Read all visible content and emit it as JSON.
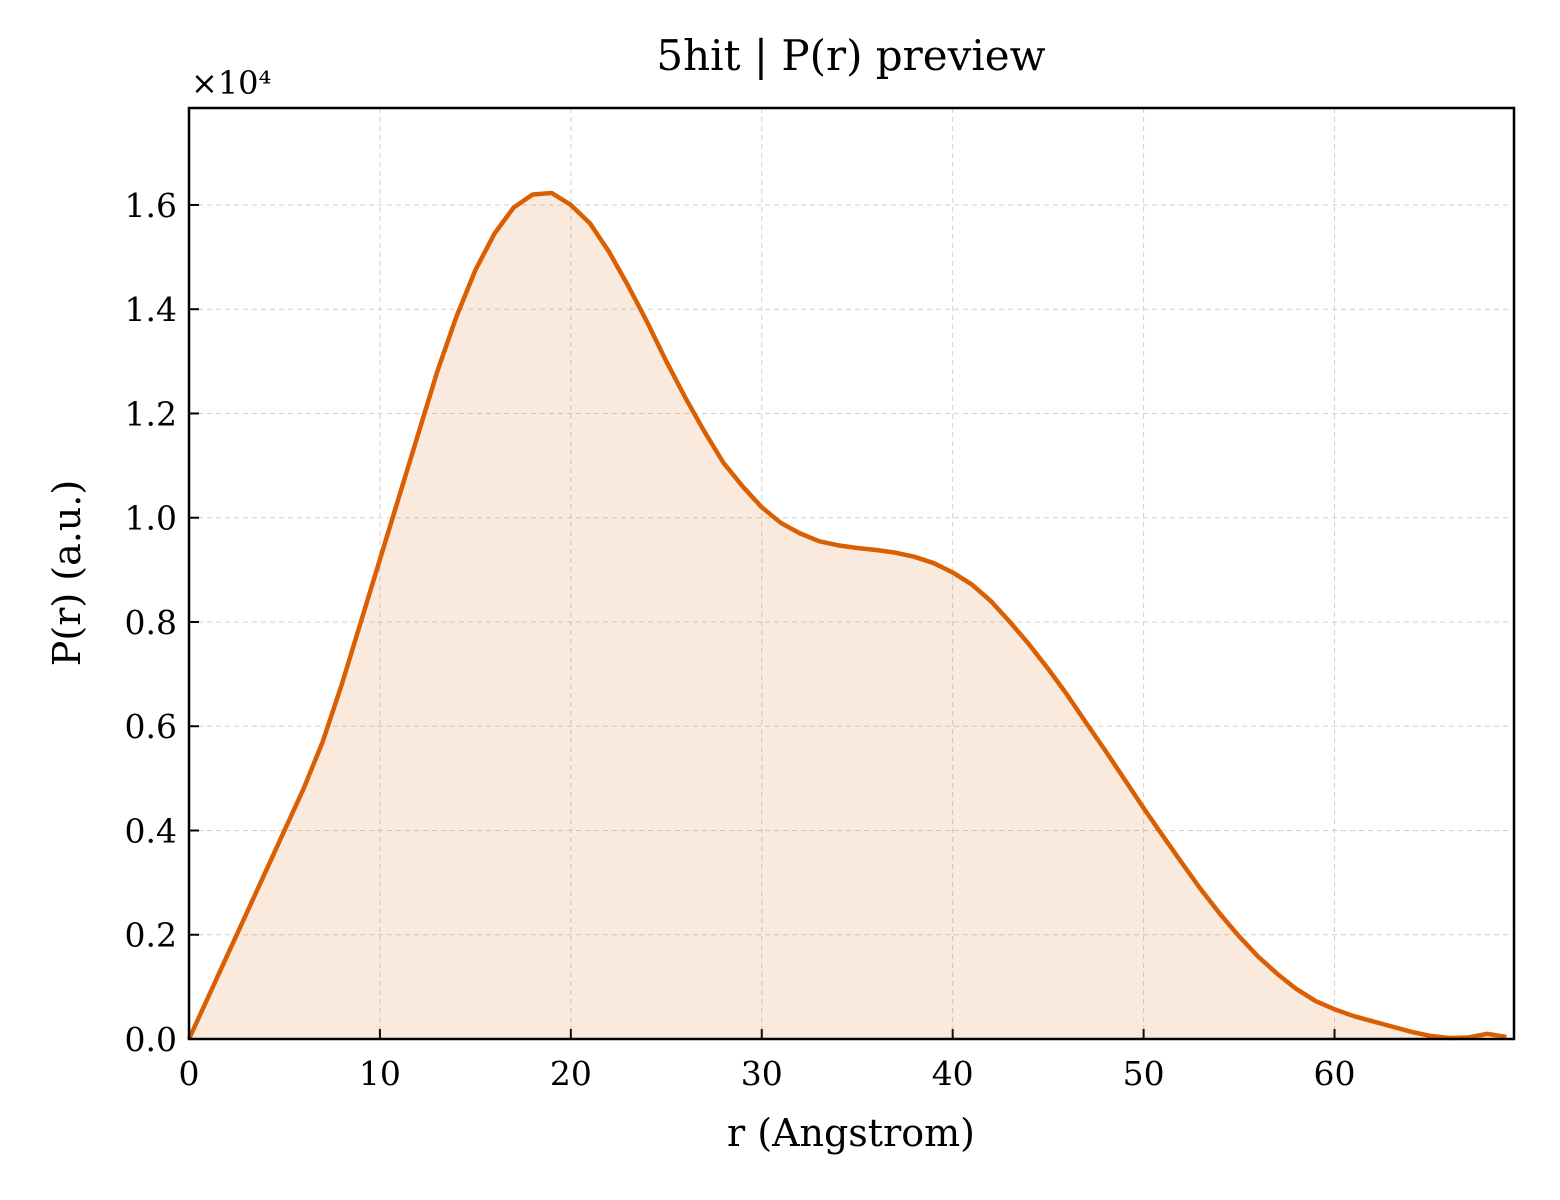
{
  "chart_data": {
    "type": "line",
    "title": "5hit | P(r) preview",
    "x_label": "r (Angstrom)",
    "y_label": "P(r) (a.u.)",
    "y_offset_label": "×10⁴",
    "x": [
      0,
      1,
      2,
      3,
      4,
      5,
      6,
      7,
      8,
      9,
      10,
      11,
      12,
      13,
      14,
      15,
      16,
      17,
      18,
      19,
      20,
      21,
      22,
      23,
      24,
      25,
      26,
      27,
      28,
      29,
      30,
      31,
      32,
      33,
      34,
      35,
      36,
      37,
      38,
      39,
      40,
      41,
      42,
      43,
      44,
      45,
      46,
      47,
      48,
      49,
      50,
      51,
      52,
      53,
      54,
      55,
      56,
      57,
      58,
      59,
      60,
      61,
      62,
      63,
      64,
      65,
      66,
      67,
      68,
      69
    ],
    "values": [
      0,
      0.08,
      0.16,
      0.24,
      0.32,
      0.4,
      0.48,
      0.57,
      0.68,
      0.8,
      0.92,
      1.04,
      1.16,
      1.28,
      1.385,
      1.475,
      1.545,
      1.595,
      1.62,
      1.623,
      1.6,
      1.565,
      1.51,
      1.445,
      1.375,
      1.3,
      1.23,
      1.165,
      1.105,
      1.06,
      1.02,
      0.99,
      0.97,
      0.955,
      0.947,
      0.942,
      0.938,
      0.933,
      0.925,
      0.913,
      0.895,
      0.872,
      0.84,
      0.8,
      0.757,
      0.71,
      0.66,
      0.606,
      0.553,
      0.498,
      0.443,
      0.39,
      0.338,
      0.287,
      0.24,
      0.197,
      0.158,
      0.125,
      0.096,
      0.073,
      0.057,
      0.044,
      0.034,
      0.024,
      0.014,
      0.006,
      0.002,
      0.003,
      0.01,
      0.004
    ],
    "color": "#d95f02",
    "fill": true,
    "grid": true,
    "xlim": [
      0,
      69.4
    ],
    "ylim": [
      0,
      1.786
    ],
    "xticks": [
      0,
      10,
      20,
      30,
      40,
      50,
      60
    ],
    "yticks": [
      {
        "value": 0,
        "label": "0.0"
      },
      0.2,
      0.4,
      0.6,
      0.8,
      {
        "value": 1,
        "label": "1.0"
      },
      1.2,
      1.4,
      1.6
    ]
  }
}
